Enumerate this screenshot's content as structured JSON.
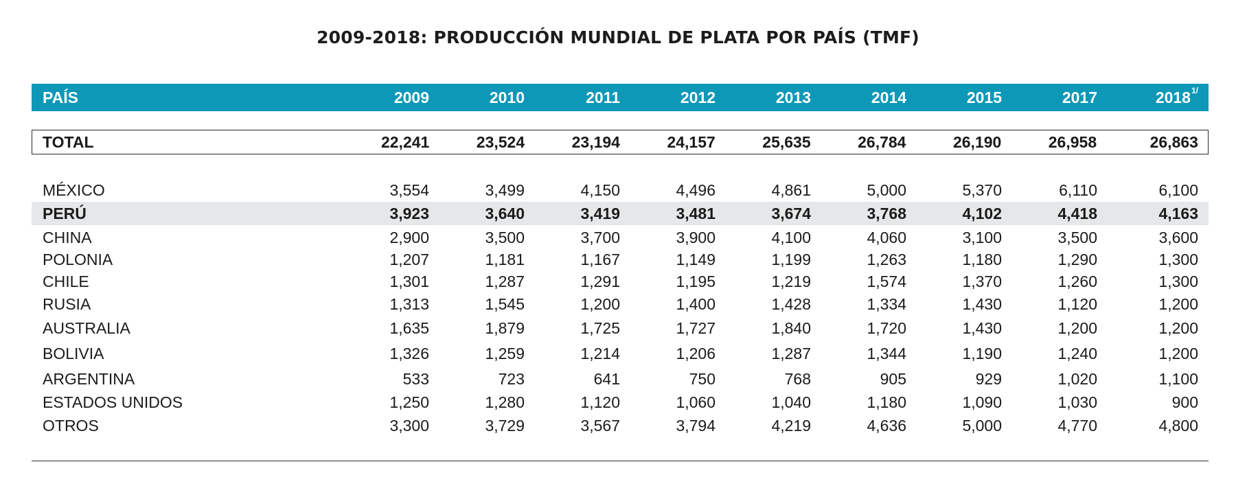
{
  "title": "2009-2018: PRODUCCIÓN MUNDIAL DE PLATA POR PAÍS (TMF)",
  "header": {
    "country_label": "PAÍS",
    "years": [
      "2009",
      "2010",
      "2011",
      "2012",
      "2013",
      "2014",
      "2015",
      "2017",
      "2018"
    ],
    "last_year_note": "1/"
  },
  "total": {
    "label": "TOTAL",
    "values": [
      "22,241",
      "23,524",
      "23,194",
      "24,157",
      "25,635",
      "26,784",
      "26,190",
      "26,958",
      "26,863"
    ]
  },
  "rows": [
    {
      "country": "MÉXICO",
      "values": [
        "3,554",
        "3,499",
        "4,150",
        "4,496",
        "4,861",
        "5,000",
        "5,370",
        "6,110",
        "6,100"
      ]
    },
    {
      "country": "PERÚ",
      "values": [
        "3,923",
        "3,640",
        "3,419",
        "3,481",
        "3,674",
        "3,768",
        "4,102",
        "4,418",
        "4,163"
      ]
    },
    {
      "country": "CHINA",
      "values": [
        "2,900",
        "3,500",
        "3,700",
        "3,900",
        "4,100",
        "4,060",
        "3,100",
        "3,500",
        "3,600"
      ]
    },
    {
      "country": "POLONIA",
      "values": [
        "1,207",
        "1,181",
        "1,167",
        "1,149",
        "1,199",
        "1,263",
        "1,180",
        "1,290",
        "1,300"
      ]
    },
    {
      "country": "CHILE",
      "values": [
        "1,301",
        "1,287",
        "1,291",
        "1,195",
        "1,219",
        "1,574",
        "1,370",
        "1,260",
        "1,300"
      ]
    },
    {
      "country": "RUSIA",
      "values": [
        "1,313",
        "1,545",
        "1,200",
        "1,400",
        "1,428",
        "1,334",
        "1,430",
        "1,120",
        "1,200"
      ]
    },
    {
      "country": "AUSTRALIA",
      "values": [
        "1,635",
        "1,879",
        "1,725",
        "1,727",
        "1,840",
        "1,720",
        "1,430",
        "1,200",
        "1,200"
      ]
    },
    {
      "country": "BOLIVIA",
      "values": [
        "1,326",
        "1,259",
        "1,214",
        "1,206",
        "1,287",
        "1,344",
        "1,190",
        "1,240",
        "1,200"
      ]
    },
    {
      "country": "ARGENTINA",
      "values": [
        "533",
        "723",
        "641",
        "750",
        "768",
        "905",
        "929",
        "1,020",
        "1,100"
      ]
    },
    {
      "country": "ESTADOS UNIDOS",
      "values": [
        "1,250",
        "1,280",
        "1,120",
        "1,060",
        "1,040",
        "1,180",
        "1,090",
        "1,030",
        "900"
      ]
    },
    {
      "country": "OTROS",
      "values": [
        "3,300",
        "3,729",
        "3,567",
        "3,794",
        "4,219",
        "4,636",
        "5,000",
        "4,770",
        "4,800"
      ]
    }
  ],
  "highlight_color": "#e6e7e9",
  "header_color": "#0d98b8"
}
